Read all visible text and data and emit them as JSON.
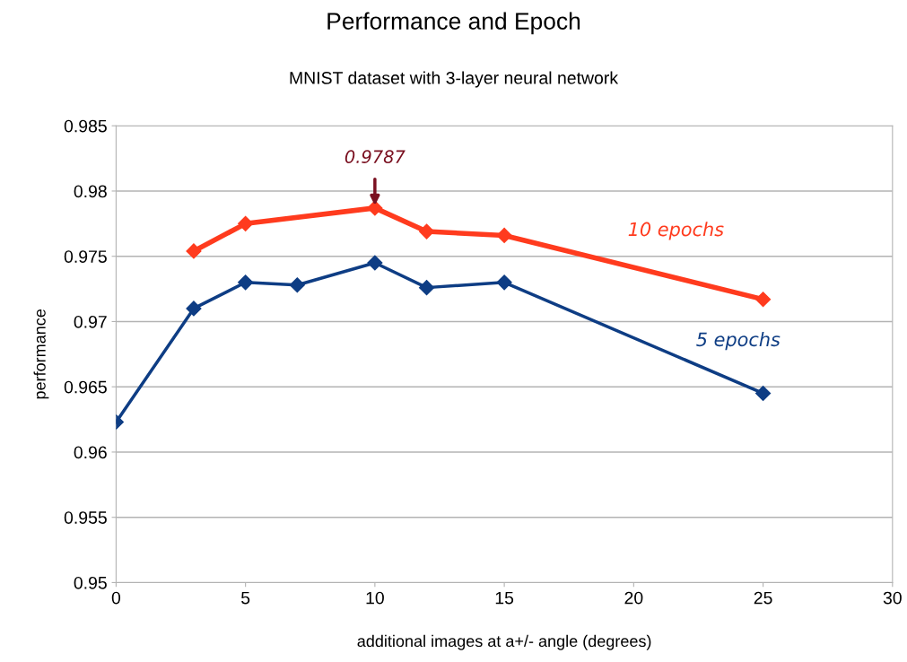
{
  "chart_data": {
    "type": "line",
    "title": "Performance and Epoch",
    "subtitle": "MNIST dataset with 3-layer neural network",
    "xlabel": "additional images at a+/- angle (degrees)",
    "ylabel": "performance",
    "series": [
      {
        "name": "10 epochs",
        "color": "#ff3b1e",
        "x": [
          3,
          5,
          10,
          12,
          15,
          25
        ],
        "values": [
          0.9754,
          0.9775,
          0.9787,
          0.9769,
          0.9766,
          0.9717
        ]
      },
      {
        "name": "5 epochs",
        "color": "#0e3d84",
        "x": [
          0,
          3,
          5,
          7,
          10,
          12,
          15,
          25
        ],
        "values": [
          0.9623,
          0.971,
          0.973,
          0.9728,
          0.9745,
          0.9726,
          0.973,
          0.9645
        ]
      }
    ],
    "annotations": [
      {
        "text": "0.9787",
        "x": 10,
        "y": 0.9787
      }
    ],
    "xlim": [
      0,
      30
    ],
    "xticks": [
      0,
      5,
      10,
      15,
      20,
      25,
      30
    ],
    "ylim": [
      0.95,
      0.985
    ],
    "yticks": [
      0.95,
      0.955,
      0.96,
      0.965,
      0.97,
      0.975,
      0.98,
      0.985
    ],
    "grid": "y",
    "marker": "diamond",
    "line_style": "solid",
    "legend": false
  }
}
